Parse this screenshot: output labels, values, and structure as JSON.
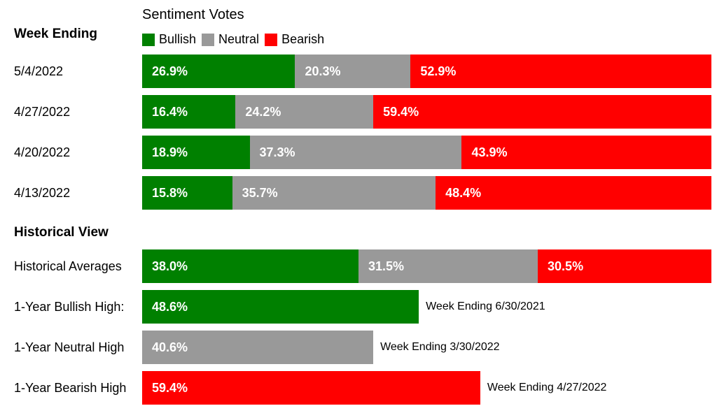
{
  "colors": {
    "bullish": "#008000",
    "neutral": "#999999",
    "bearish": "#ff0000"
  },
  "chart_data": {
    "type": "bar",
    "title": "Sentiment Votes",
    "stacked": true,
    "orientation": "horizontal",
    "legend": [
      {
        "name": "Bullish",
        "color_key": "bullish"
      },
      {
        "name": "Neutral",
        "color_key": "neutral"
      },
      {
        "name": "Bearish",
        "color_key": "bearish"
      }
    ],
    "weekly_header": "Week Ending",
    "weekly": [
      {
        "label": "5/4/2022",
        "bullish": "26.9%",
        "neutral": "20.3%",
        "bearish": "52.9%"
      },
      {
        "label": "4/27/2022",
        "bullish": "16.4%",
        "neutral": "24.2%",
        "bearish": "59.4%"
      },
      {
        "label": "4/20/2022",
        "bullish": "18.9%",
        "neutral": "37.3%",
        "bearish": "43.9%"
      },
      {
        "label": "4/13/2022",
        "bullish": "15.8%",
        "neutral": "35.7%",
        "bearish": "48.4%"
      }
    ],
    "historical_header": "Historical View",
    "historical_average": {
      "label": "Historical Averages",
      "bullish": "38.0%",
      "neutral": "31.5%",
      "bearish": "30.5%"
    },
    "highs": [
      {
        "label": "1-Year Bullish High:",
        "series": "bullish",
        "value": "48.6%",
        "note": "Week Ending 6/30/2021"
      },
      {
        "label": "1-Year Neutral High",
        "series": "neutral",
        "value": "40.6%",
        "note": "Week Ending 3/30/2022"
      },
      {
        "label": "1-Year Bearish High",
        "series": "bearish",
        "value": "59.4%",
        "note": "Week Ending 4/27/2022"
      }
    ]
  }
}
